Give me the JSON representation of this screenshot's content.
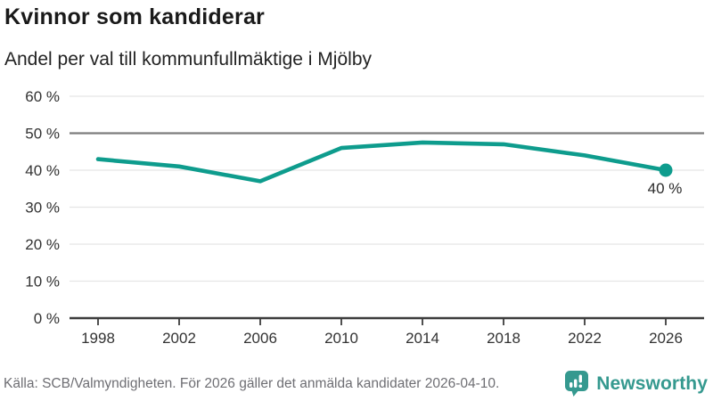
{
  "header": {
    "title": "Kvinnor som kandiderar",
    "subtitle": "Andel per val till kommunfullmäktige i Mjölby"
  },
  "chart_data": {
    "type": "line",
    "categories": [
      "1998",
      "2002",
      "2006",
      "2010",
      "2014",
      "2018",
      "2022",
      "2026"
    ],
    "values": [
      43,
      41,
      37,
      46,
      47.5,
      47,
      44,
      40
    ],
    "title": "Kvinnor som kandiderar",
    "subtitle": "Andel per val till kommunfullmäktige i Mjölby",
    "xlabel": "",
    "ylabel": "",
    "ylim": [
      0,
      60
    ],
    "yticks": [
      0,
      10,
      20,
      30,
      40,
      50,
      60
    ],
    "ytick_suffix": " %",
    "reference_line": 50,
    "grid": true,
    "legend": false,
    "last_point_label": "40 %"
  },
  "footer": {
    "source": "Källa: SCB/Valmyndigheten. För 2026 gäller det anmälda kandidater 2026-04-10.",
    "logo_text": "Newsworthy"
  },
  "colors": {
    "line": "#0e9c8d",
    "dot": "#0e9c8d",
    "grid": "#e5e5e5",
    "reference_grid": "#7d7d7d",
    "axis": "#3c3c3c",
    "tick_text": "#333333",
    "point_label_text": "#2b2b2b",
    "logo": "#35998f"
  }
}
